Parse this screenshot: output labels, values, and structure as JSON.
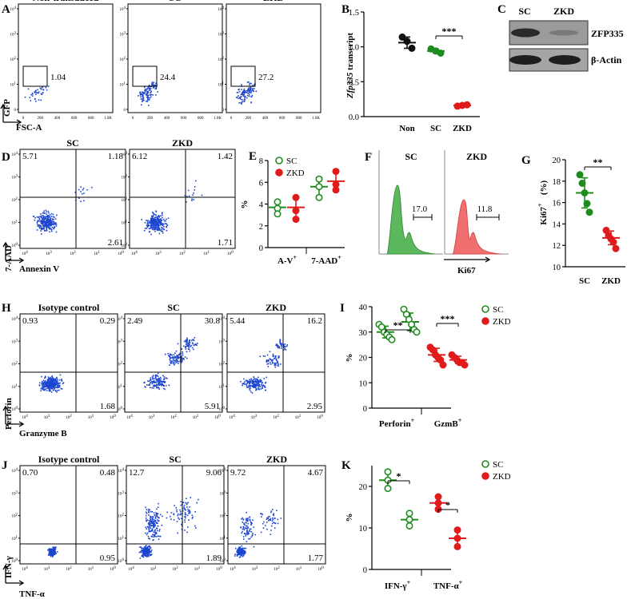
{
  "colors": {
    "sc": "#1e8c1e",
    "zkd": "#e01b1b",
    "non": "#111111",
    "dots": "#1c45cf",
    "ki67_sc": "#5cb85c",
    "ki67_zkd": "#f07070"
  },
  "icons": [
    "corner-axis-arrow-icon",
    "histogram-gate-icon"
  ],
  "panel_a": {
    "letter": "A",
    "headers": [
      "Non-transduced",
      "SC",
      "ZKD"
    ],
    "gate_values": [
      "1.04",
      "24.4",
      "27.2"
    ],
    "x_axis": "FSC-A",
    "y_axis": "GFP",
    "x_ticks": [
      "0",
      "200",
      "400",
      "600",
      "800",
      "1.0K"
    ],
    "y_ticks": [
      "10^4",
      "10^3",
      "10^2",
      "10^1",
      "0"
    ]
  },
  "panel_b": {
    "letter": "B",
    "ylabel_italic": "Zfp335",
    "ylabel_rest": " transcript",
    "signif": "***",
    "chart_data": {
      "type": "scatter",
      "categories": [
        "Non",
        "SC",
        "ZKD"
      ],
      "series": [
        {
          "name": "Non",
          "values": [
            1.14,
            1.08,
            0.98
          ],
          "mean": 1.06
        },
        {
          "name": "SC",
          "values": [
            0.97,
            0.94,
            0.91
          ],
          "mean": 0.94
        },
        {
          "name": "ZKD",
          "values": [
            0.15,
            0.16,
            0.17
          ],
          "mean": 0.16
        }
      ],
      "ylim": [
        0.0,
        1.5
      ],
      "yticks": [
        "0.0",
        "0.5",
        "1.0",
        "1.5"
      ],
      "ylabel": "Zfp335 transcript"
    }
  },
  "panel_c": {
    "letter": "C",
    "lanes": [
      "SC",
      "ZKD"
    ],
    "bands": [
      "ZFP335",
      "β-Actin"
    ]
  },
  "panel_d": {
    "letter": "D",
    "headers": [
      "SC",
      "ZKD"
    ],
    "quadrants": [
      {
        "ul": "5.71",
        "ur": "1.18",
        "lr": "2.61"
      },
      {
        "ul": "6.12",
        "ur": "1.42",
        "lr": "1.71"
      }
    ],
    "x_axis": "Annexin V",
    "y_axis": "7-AAD",
    "ticks": [
      "10^4",
      "10^3",
      "10^2",
      "10^1",
      "10^0"
    ]
  },
  "panel_e": {
    "letter": "E",
    "legend": [
      "SC",
      "ZKD"
    ],
    "chart_data": {
      "type": "scatter",
      "categories": [
        "A-V+",
        "7-AAD+"
      ],
      "category_labels": [
        [
          "A-V",
          "+"
        ],
        [
          "7-AAD",
          "+"
        ]
      ],
      "series": [
        {
          "name": "SC",
          "values": [
            [
              4.2,
              3.6,
              3.1
            ],
            [
              6.3,
              5.6,
              4.6
            ]
          ],
          "mean": [
            3.7,
            5.6
          ]
        },
        {
          "name": "ZKD",
          "values": [
            [
              4.6,
              3.4,
              2.6
            ],
            [
              7.0,
              5.8,
              5.3
            ]
          ],
          "mean": [
            3.7,
            6.1
          ]
        }
      ],
      "ylim": [
        0,
        8
      ],
      "yticks": [
        "0",
        "2",
        "4",
        "6",
        "8"
      ],
      "ylabel": "%"
    }
  },
  "panel_f": {
    "letter": "F",
    "headers": [
      "SC",
      "ZKD"
    ],
    "gate_values": [
      "17.0",
      "11.8"
    ],
    "x_axis": "Ki67"
  },
  "panel_g": {
    "letter": "G",
    "signif": "**",
    "ylabel_main": "Ki67",
    "ylabel_sup": "+",
    "ylabel_unit": " (%)",
    "chart_data": {
      "type": "scatter",
      "categories": [
        "SC",
        "ZKD"
      ],
      "series": [
        {
          "name": "SC",
          "values": [
            18.6,
            17.8,
            16.9,
            15.9,
            15.1
          ],
          "mean": 16.9
        },
        {
          "name": "ZKD",
          "values": [
            13.4,
            12.9,
            12.6,
            12.3,
            11.7
          ],
          "mean": 12.7
        }
      ],
      "ylim": [
        10,
        20
      ],
      "yticks": [
        "10",
        "12",
        "14",
        "16",
        "18",
        "20"
      ],
      "ylabel": "Ki67+ (%)"
    }
  },
  "panel_h": {
    "letter": "H",
    "headers": [
      "Isotype control",
      "SC",
      "ZKD"
    ],
    "quadrants": [
      {
        "ul": "0.93",
        "ur": "0.29",
        "lr": "1.68"
      },
      {
        "ul": "2.49",
        "ur": "30.8",
        "lr": "5.91"
      },
      {
        "ul": "5.44",
        "ur": "16.2",
        "lr": "2.95"
      }
    ],
    "x_axis": "Granzyme B",
    "y_axis": "Perforin",
    "ticks": [
      "10^4",
      "10^3",
      "10^2",
      "10^1",
      "10^0"
    ]
  },
  "panel_i": {
    "letter": "I",
    "legend": [
      "SC",
      "ZKD"
    ],
    "signif": [
      "**",
      "***"
    ],
    "chart_data": {
      "type": "scatter",
      "categories": [
        "Perforin+",
        "GzmB+"
      ],
      "category_labels": [
        [
          "Perforin",
          "+"
        ],
        [
          "GzmB",
          "+"
        ]
      ],
      "series": [
        {
          "name": "SC",
          "values": [
            [
              33,
              32,
              30,
              29,
              28,
              27
            ],
            [
              39,
              37,
              35,
              33,
              31,
              30
            ]
          ],
          "mean": [
            30,
            34
          ]
        },
        {
          "name": "ZKD",
          "values": [
            [
              24,
              23,
              21,
              20,
              19,
              17
            ],
            [
              21,
              20,
              19,
              18,
              18,
              17
            ]
          ],
          "mean": [
            21,
            19
          ]
        }
      ],
      "ylim": [
        0,
        40
      ],
      "yticks": [
        "0",
        "10",
        "20",
        "30",
        "40"
      ],
      "ylabel": "%"
    }
  },
  "panel_j": {
    "letter": "J",
    "headers": [
      "Isotype control",
      "SC",
      "ZKD"
    ],
    "quadrants": [
      {
        "ul": "0.70",
        "ur": "0.48",
        "lr": "0.95"
      },
      {
        "ul": "12.7",
        "ur": "9.06",
        "lr": "1.89"
      },
      {
        "ul": "9.72",
        "ur": "4.67",
        "lr": "1.77"
      }
    ],
    "x_axis": "TNF-α",
    "y_axis": "IFN-γ",
    "ticks": [
      "10^4",
      "10^3",
      "10^2",
      "10^1",
      "10^0"
    ]
  },
  "panel_k": {
    "letter": "K",
    "legend": [
      "SC",
      "ZKD"
    ],
    "signif": [
      "*",
      "*"
    ],
    "chart_data": {
      "type": "scatter",
      "categories": [
        "IFN-γ+",
        "TNF-α+"
      ],
      "category_labels": [
        [
          "IFN-γ",
          "+"
        ],
        [
          "TNF-α",
          "+"
        ]
      ],
      "series": [
        {
          "name": "SC",
          "values": [
            [
              23.5,
              21.5,
              19.5
            ],
            [
              13.5,
              12.0,
              10.5
            ]
          ],
          "mean": [
            21.5,
            12.0
          ]
        },
        {
          "name": "ZKD",
          "values": [
            [
              17.5,
              16.0,
              14.5
            ],
            [
              9.5,
              7.5,
              5.5
            ]
          ],
          "mean": [
            16.0,
            7.5
          ]
        }
      ],
      "ylim": [
        0,
        25
      ],
      "yticks": [
        "0",
        "10",
        "20"
      ],
      "ylabel": "%"
    }
  }
}
